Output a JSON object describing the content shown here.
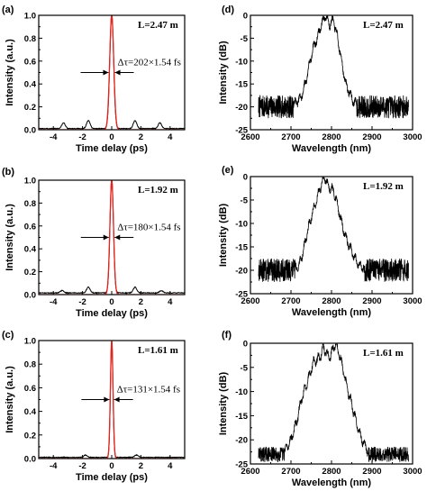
{
  "chart_data": [
    {
      "id": "a",
      "panel_label": "(a)",
      "type": "line",
      "xlabel": "Time delay (ps)",
      "ylabel": "Intensity (a.u.)",
      "xlim": [
        -5,
        5
      ],
      "ylim": [
        0,
        1.0
      ],
      "xticks": [
        -4,
        -2,
        0,
        2,
        4
      ],
      "yticks": [
        0.0,
        0.2,
        0.4,
        0.6,
        0.8,
        1.0
      ],
      "annotation": "L=2.47 m",
      "width_label": "Δτ=202×1.54 fs",
      "fwhm_ps": 0.311,
      "side_peaks": [
        [
          -3.3,
          0.05
        ],
        [
          -1.6,
          0.07
        ],
        [
          1.6,
          0.07
        ],
        [
          3.3,
          0.05
        ]
      ],
      "baseline": 0.01,
      "series": [
        {
          "name": "",
          "color": "#000000"
        },
        {
          "name": "",
          "color": "#e8211c"
        }
      ]
    },
    {
      "id": "b",
      "panel_label": "(b)",
      "type": "line",
      "xlabel": "Time delay (ps)",
      "ylabel": "Intensity (a.u.)",
      "xlim": [
        -5,
        5
      ],
      "ylim": [
        0,
        1.0
      ],
      "xticks": [
        -4,
        -2,
        0,
        2,
        4
      ],
      "yticks": [
        0.0,
        0.2,
        0.4,
        0.6,
        0.8,
        1.0
      ],
      "annotation": "L=1.92 m",
      "width_label": "Δτ=180×1.54 fs",
      "fwhm_ps": 0.277,
      "side_peaks": [
        [
          -3.4,
          0.02
        ],
        [
          -1.6,
          0.05
        ],
        [
          1.6,
          0.05
        ],
        [
          3.4,
          0.02
        ]
      ],
      "baseline": 0.015,
      "series": [
        {
          "name": "",
          "color": "#000000"
        },
        {
          "name": "",
          "color": "#e8211c"
        }
      ]
    },
    {
      "id": "c",
      "panel_label": "(c)",
      "type": "line",
      "xlabel": "Time delay (ps)",
      "ylabel": "Intensity (a.u.)",
      "xlim": [
        -5,
        5
      ],
      "ylim": [
        0,
        1.0
      ],
      "xticks": [
        -4,
        -2,
        0,
        2,
        4
      ],
      "yticks": [
        0.0,
        0.2,
        0.4,
        0.6,
        0.8,
        1.0
      ],
      "annotation": "L=1.61 m",
      "width_label": "Δτ=131×1.54 fs",
      "fwhm_ps": 0.202,
      "side_peaks": [
        [
          -1.8,
          0.02
        ],
        [
          1.7,
          0.02
        ]
      ],
      "baseline": 0.01,
      "series": [
        {
          "name": "",
          "color": "#000000"
        },
        {
          "name": "",
          "color": "#e8211c"
        }
      ]
    },
    {
      "id": "d",
      "panel_label": "(d)",
      "type": "line",
      "xlabel": "Wavelength (nm)",
      "ylabel": "Intensity (dB)",
      "xlim": [
        2600,
        3000
      ],
      "ylim": [
        -25,
        0
      ],
      "xticks": [
        2600,
        2700,
        2800,
        2900,
        3000
      ],
      "yticks": [
        0,
        -5,
        -10,
        -15,
        -20,
        -25
      ],
      "annotation": "L=2.47 m",
      "spectrum": {
        "noise_floor": -20,
        "noise_amp": 2.5,
        "range": [
          2620,
          2990
        ],
        "envelope": [
          [
            2700,
            -20
          ],
          [
            2725,
            -18
          ],
          [
            2735,
            -15
          ],
          [
            2745,
            -11
          ],
          [
            2755,
            -7
          ],
          [
            2765,
            -5
          ],
          [
            2775,
            -2
          ],
          [
            2785,
            0
          ],
          [
            2795,
            -2
          ],
          [
            2805,
            -1
          ],
          [
            2815,
            -5
          ],
          [
            2825,
            -10
          ],
          [
            2835,
            -15
          ],
          [
            2845,
            -17
          ],
          [
            2855,
            -19
          ],
          [
            2870,
            -20
          ]
        ],
        "seed": 7
      },
      "series": [
        {
          "name": "",
          "color": "#000000"
        }
      ]
    },
    {
      "id": "e",
      "panel_label": "(e)",
      "type": "line",
      "xlabel": "Wavelength (nm)",
      "ylabel": "Intensity (dB)",
      "xlim": [
        2600,
        3000
      ],
      "ylim": [
        -25,
        0
      ],
      "xticks": [
        2600,
        2700,
        2800,
        2900,
        3000
      ],
      "yticks": [
        0,
        -5,
        -10,
        -15,
        -20,
        -25
      ],
      "annotation": "L=1.92 m",
      "spectrum": {
        "noise_floor": -20,
        "noise_amp": 2.5,
        "range": [
          2620,
          2990
        ],
        "envelope": [
          [
            2700,
            -20
          ],
          [
            2720,
            -19
          ],
          [
            2730,
            -16
          ],
          [
            2740,
            -12
          ],
          [
            2752,
            -8
          ],
          [
            2760,
            -6
          ],
          [
            2770,
            -3
          ],
          [
            2782,
            0
          ],
          [
            2792,
            -2
          ],
          [
            2805,
            -3
          ],
          [
            2815,
            -6
          ],
          [
            2825,
            -10
          ],
          [
            2835,
            -13
          ],
          [
            2845,
            -15
          ],
          [
            2855,
            -17
          ],
          [
            2870,
            -19
          ],
          [
            2890,
            -20
          ]
        ],
        "seed": 13
      },
      "series": [
        {
          "name": "",
          "color": "#000000"
        }
      ]
    },
    {
      "id": "f",
      "panel_label": "(f)",
      "type": "line",
      "xlabel": "Wavelength (nm)",
      "ylabel": "Intensity (dB)",
      "xlim": [
        2600,
        3000
      ],
      "ylim": [
        -25,
        0
      ],
      "xticks": [
        2600,
        2700,
        2800,
        2900,
        3000
      ],
      "yticks": [
        0,
        -5,
        -10,
        -15,
        -20,
        -25
      ],
      "annotation": "L=1.61 m",
      "spectrum": {
        "noise_floor": -23,
        "noise_amp": 1.6,
        "range": [
          2620,
          2990
        ],
        "envelope": [
          [
            2680,
            -23
          ],
          [
            2700,
            -20
          ],
          [
            2715,
            -16
          ],
          [
            2725,
            -12
          ],
          [
            2740,
            -8
          ],
          [
            2755,
            -4
          ],
          [
            2770,
            -3
          ],
          [
            2780,
            -1
          ],
          [
            2795,
            -3
          ],
          [
            2810,
            0
          ],
          [
            2822,
            -3
          ],
          [
            2835,
            -8
          ],
          [
            2848,
            -12
          ],
          [
            2860,
            -16
          ],
          [
            2875,
            -20
          ],
          [
            2895,
            -23
          ]
        ],
        "seed": 29
      },
      "series": [
        {
          "name": "",
          "color": "#000000"
        }
      ]
    }
  ]
}
